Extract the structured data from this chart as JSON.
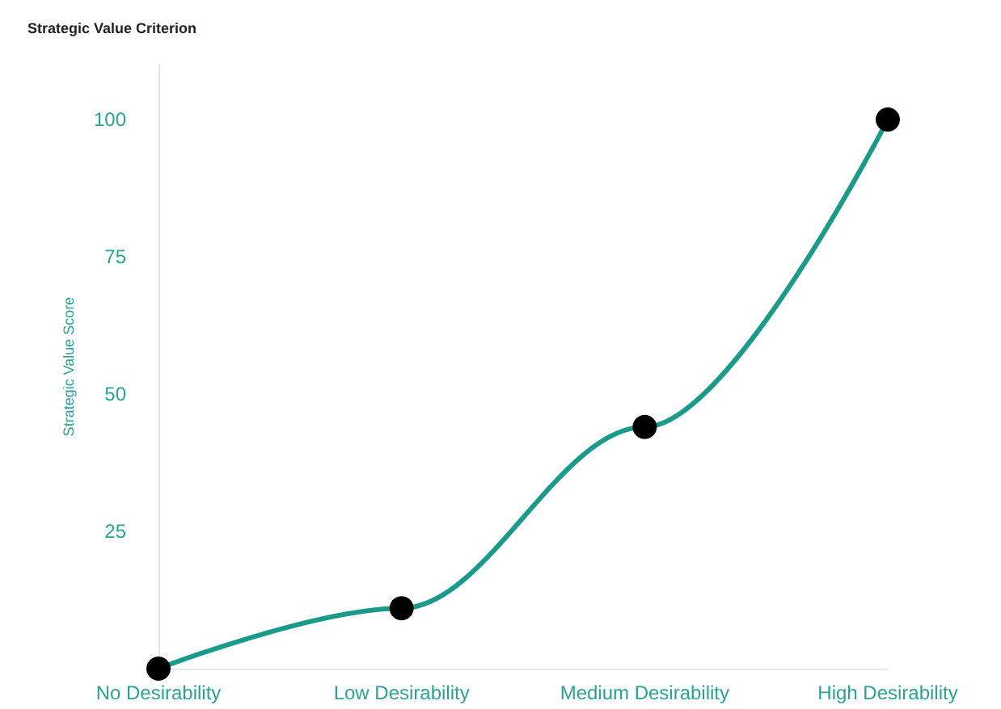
{
  "chart_data": {
    "type": "line",
    "title": "Strategic Value Criterion",
    "ylabel": "Strategic Value Score",
    "categories": [
      "No Desirability",
      "Low Desirability",
      "Medium Desirability",
      "High Desirability"
    ],
    "series": [
      {
        "color": "#1a9a8a",
        "values": [
          0,
          11,
          44,
          100
        ]
      }
    ],
    "ylim": [
      0,
      110
    ],
    "yticks": [
      25,
      50,
      75,
      100
    ],
    "grid": false,
    "marker": "circle",
    "line_style": "solid"
  }
}
